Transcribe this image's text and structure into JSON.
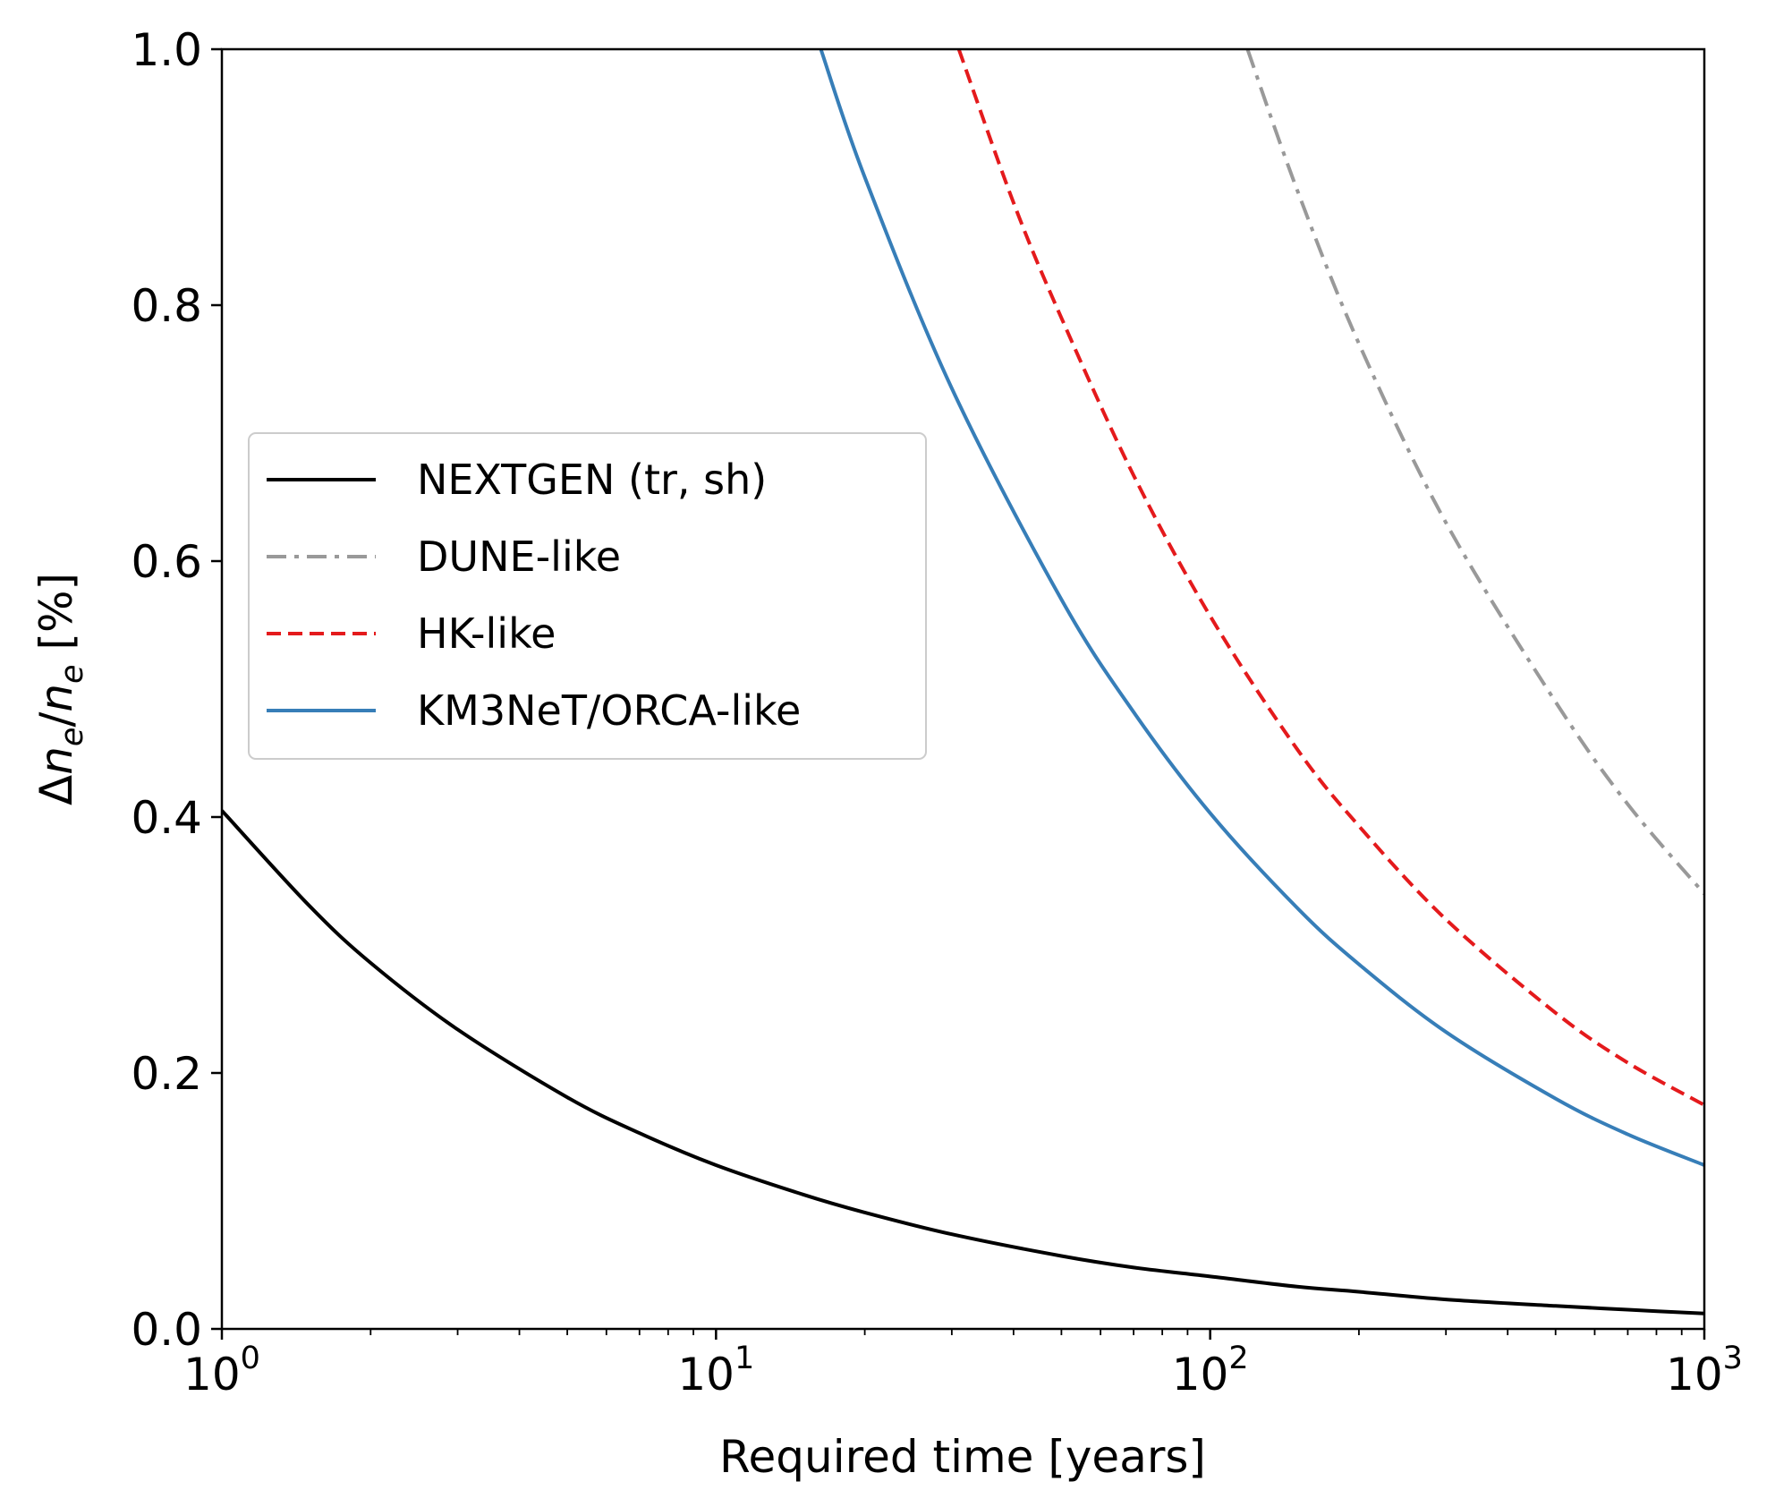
{
  "chart_data": {
    "type": "line",
    "xlabel": "Required time [years]",
    "ylabel": "Δne/ne [%]",
    "ylabel_parts": {
      "delta": "Δ",
      "n1": "n",
      "sub1": "e",
      "slash": "/",
      "n2": "n",
      "sub2": "e",
      "unit": " [%]"
    },
    "x_scale": "log",
    "xlim": [
      1,
      1000
    ],
    "ylim": [
      0.0,
      1.0
    ],
    "x_ticks": [
      {
        "value": 1,
        "base": "10",
        "exp": "0"
      },
      {
        "value": 10,
        "base": "10",
        "exp": "1"
      },
      {
        "value": 100,
        "base": "10",
        "exp": "2"
      },
      {
        "value": 1000,
        "base": "10",
        "exp": "3"
      }
    ],
    "y_ticks": [
      {
        "value": 0.0,
        "label": "0.0"
      },
      {
        "value": 0.2,
        "label": "0.2"
      },
      {
        "value": 0.4,
        "label": "0.4"
      },
      {
        "value": 0.6,
        "label": "0.6"
      },
      {
        "value": 0.8,
        "label": "0.8"
      },
      {
        "value": 1.0,
        "label": "1.0"
      }
    ],
    "grid": false,
    "legend_position": "center-left",
    "series": [
      {
        "name": "NEXTGEN (tr, sh)",
        "color": "#000000",
        "dash": "solid",
        "x": [
          1,
          1.5,
          2,
          3,
          5,
          7,
          10,
          15,
          20,
          30,
          50,
          70,
          100,
          150,
          200,
          300,
          500,
          700,
          1000
        ],
        "y": [
          0.405,
          0.331,
          0.286,
          0.234,
          0.181,
          0.153,
          0.128,
          0.105,
          0.091,
          0.074,
          0.057,
          0.048,
          0.041,
          0.033,
          0.029,
          0.023,
          0.018,
          0.015,
          0.012
        ]
      },
      {
        "name": "DUNE-like",
        "color": "#999999",
        "dash": "dashdot",
        "x": [
          119,
          150,
          200,
          300,
          500,
          700,
          1000
        ],
        "y": [
          1.0,
          0.89,
          0.77,
          0.63,
          0.49,
          0.41,
          0.34
        ]
      },
      {
        "name": "HK-like",
        "color": "#e41a1c",
        "dash": "dashed",
        "x": [
          31,
          40,
          50,
          70,
          100,
          150,
          200,
          300,
          500,
          700,
          1000
        ],
        "y": [
          1.0,
          0.88,
          0.79,
          0.667,
          0.557,
          0.453,
          0.393,
          0.32,
          0.247,
          0.208,
          0.175
        ]
      },
      {
        "name": "KM3NeT/ORCA-like",
        "color": "#377eb8",
        "dash": "solid",
        "x": [
          16.3,
          20,
          30,
          50,
          70,
          100,
          150,
          200,
          300,
          500,
          700,
          1000
        ],
        "y": [
          1.0,
          0.9,
          0.735,
          0.57,
          0.482,
          0.403,
          0.329,
          0.285,
          0.232,
          0.18,
          0.152,
          0.128
        ]
      }
    ]
  }
}
